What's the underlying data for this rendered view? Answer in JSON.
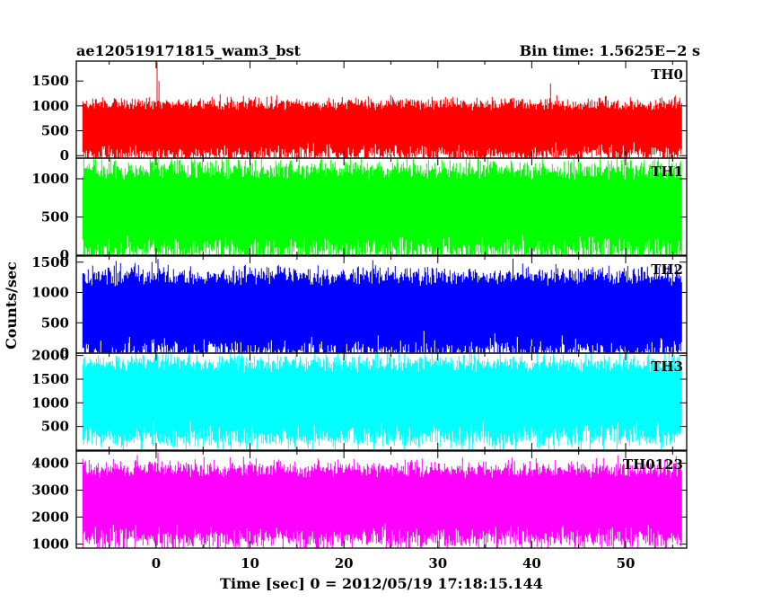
{
  "header": {
    "title": "ae120519171815_wam3_bst",
    "bin_time": "Bin time: 1.5625E−2 s"
  },
  "axes": {
    "ylabel": "Counts/sec",
    "xlabel": "Time [sec] 0 = 2012/05/19 17:18:15.144"
  },
  "chart_data": {
    "type": "line",
    "title": "ae120519171815_wam3_bst",
    "subtitle": "Bin time: 1.5625E−2 s",
    "xlabel": "Time [sec] 0 = 2012/05/19 17:18:15.144",
    "ylabel": "Counts/sec",
    "xlim": [
      -8.5,
      56.5
    ],
    "x_ticks": [
      0,
      10,
      20,
      30,
      40,
      50
    ],
    "x_tick_labels": [
      "0",
      "10",
      "20",
      "30",
      "40",
      "50"
    ],
    "data_x_range": [
      -7.8,
      56.0
    ],
    "bin_time_sec": 0.015625,
    "grid": false,
    "series": [
      {
        "name": "TH0",
        "color": "#ff0000",
        "ylim": [
          -50,
          1900
        ],
        "y_ticks": [
          0,
          500,
          1000,
          1500
        ],
        "y_tick_labels": [
          "0",
          "500",
          "1000",
          "1500"
        ],
        "mean": 500,
        "range_typical": [
          50,
          1100
        ],
        "peaks": [
          {
            "x": 0.1,
            "y": 1880
          },
          {
            "x": 0.3,
            "y": 1500
          },
          {
            "x": 42.0,
            "y": 1450
          }
        ]
      },
      {
        "name": "TH1",
        "color": "#00ff00",
        "ylim": [
          0,
          1270
        ],
        "y_ticks": [
          0,
          500,
          1000
        ],
        "y_tick_labels": [
          "0",
          "500",
          "1000"
        ],
        "mean": 550,
        "range_typical": [
          30,
          1150
        ],
        "peaks": [
          {
            "x": 0.2,
            "y": 1260
          },
          {
            "x": 29.0,
            "y": 1250
          },
          {
            "x": 52.0,
            "y": 1250
          }
        ]
      },
      {
        "name": "TH2",
        "color": "#0000ff",
        "ylim": [
          0,
          1600
        ],
        "y_ticks": [
          0,
          500,
          1000,
          1500
        ],
        "y_tick_labels": [
          "0",
          "500",
          "1000",
          "1500"
        ],
        "mean": 600,
        "range_typical": [
          40,
          1350
        ],
        "peaks": [
          {
            "x": 0.2,
            "y": 1550
          },
          {
            "x": 38.0,
            "y": 1560
          }
        ]
      },
      {
        "name": "TH3",
        "color": "#00ffff",
        "ylim": [
          0,
          2050
        ],
        "y_ticks": [
          500,
          1000,
          1500,
          2000
        ],
        "y_tick_labels": [
          "500",
          "1000",
          "1500",
          "2000"
        ],
        "mean": 1000,
        "range_typical": [
          150,
          1800
        ],
        "peaks": [
          {
            "x": 0.2,
            "y": 2000
          },
          {
            "x": 16.0,
            "y": 1950
          }
        ]
      },
      {
        "name": "TH0123",
        "color": "#ff00ff",
        "ylim": [
          850,
          4450
        ],
        "y_ticks": [
          1000,
          2000,
          3000,
          4000
        ],
        "y_tick_labels": [
          "1000",
          "2000",
          "3000",
          "4000"
        ],
        "mean": 2400,
        "range_typical": [
          1000,
          3700
        ],
        "peaks": [
          {
            "x": 0.2,
            "y": 4400
          },
          {
            "x": -2.0,
            "y": 4300
          }
        ]
      }
    ]
  }
}
